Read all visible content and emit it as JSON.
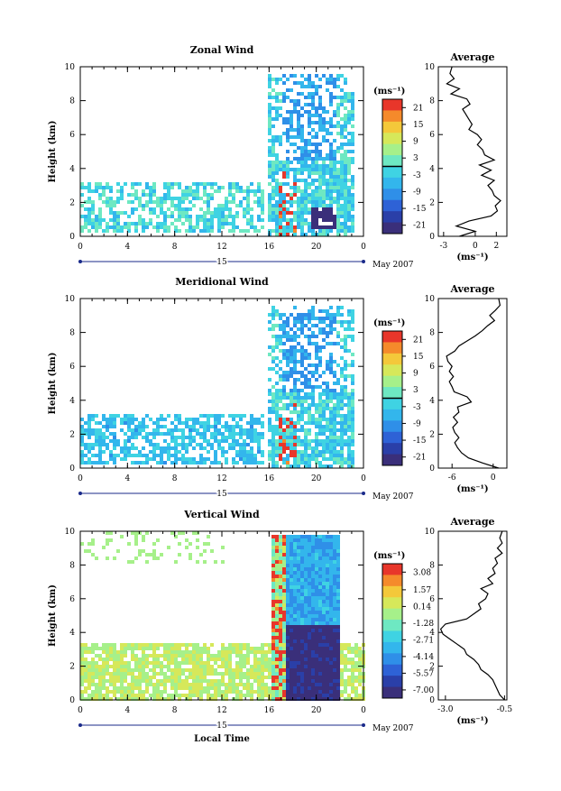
{
  "xlabel": "Local Time",
  "date_label": "May 2007",
  "day_label": "15",
  "unit_label": "(ms⁻¹)",
  "ylabel": "Height (km)",
  "avg_title": "Average",
  "colormap": [
    "#3a2f7a",
    "#2a3fa8",
    "#2e62d6",
    "#2f8fe8",
    "#33b6ec",
    "#3fd3e3",
    "#6ee8c2",
    "#a6f08a",
    "#d6e85a",
    "#f4c83a",
    "#f58a2b",
    "#e8362a"
  ],
  "chart_data": [
    {
      "type": "heatmap",
      "title": "Zonal Wind",
      "ylabel": "Height (km)",
      "xlabel": "",
      "x_ticks": [
        "0",
        "4",
        "8",
        "12",
        "16",
        "20",
        "0"
      ],
      "y_ticks": [
        "0",
        "2",
        "4",
        "6",
        "8",
        "10"
      ],
      "ylim": [
        0,
        10
      ],
      "colorbar_ticks": [
        "21",
        "15",
        "9",
        "3",
        "-3",
        "-9",
        "-15",
        "-21"
      ],
      "colorbar_range": [
        -24,
        24
      ],
      "avg": {
        "title": "Average",
        "xlabel": "(ms⁻¹)",
        "x_ticks": [
          "-3",
          "0",
          "2"
        ],
        "xlim": [
          -3.5,
          3
        ],
        "y_ticks": [
          "0",
          "2",
          "4",
          "6",
          "8",
          "10"
        ],
        "profile": [
          [
            0.0,
            -1.5
          ],
          [
            0.3,
            0.0
          ],
          [
            0.6,
            -1.8
          ],
          [
            0.9,
            -0.6
          ],
          [
            1.2,
            1.5
          ],
          [
            1.5,
            2.1
          ],
          [
            1.8,
            1.9
          ],
          [
            2.1,
            2.4
          ],
          [
            2.4,
            1.8
          ],
          [
            2.7,
            1.6
          ],
          [
            3.0,
            1.2
          ],
          [
            3.3,
            1.8
          ],
          [
            3.6,
            0.6
          ],
          [
            3.9,
            1.5
          ],
          [
            4.2,
            0.4
          ],
          [
            4.5,
            1.8
          ],
          [
            4.8,
            0.9
          ],
          [
            5.1,
            0.7
          ],
          [
            5.4,
            0.2
          ],
          [
            5.7,
            0.6
          ],
          [
            6.0,
            0.2
          ],
          [
            6.3,
            -0.6
          ],
          [
            6.6,
            -0.3
          ],
          [
            6.9,
            -0.6
          ],
          [
            7.2,
            -0.9
          ],
          [
            7.5,
            -1.2
          ],
          [
            7.8,
            -0.5
          ],
          [
            8.1,
            -0.8
          ],
          [
            8.4,
            -2.3
          ],
          [
            8.7,
            -1.5
          ],
          [
            9.0,
            -2.7
          ],
          [
            9.3,
            -2.0
          ],
          [
            9.6,
            -2.4
          ],
          [
            10.0,
            -2.2
          ]
        ]
      }
    },
    {
      "type": "heatmap",
      "title": "Meridional Wind",
      "ylabel": "Height (km)",
      "xlabel": "",
      "x_ticks": [
        "0",
        "4",
        "8",
        "12",
        "16",
        "20",
        "0"
      ],
      "y_ticks": [
        "0",
        "2",
        "4",
        "6",
        "8",
        "10"
      ],
      "ylim": [
        0,
        10
      ],
      "colorbar_ticks": [
        "21",
        "15",
        "9",
        "3",
        "-3",
        "-9",
        "-15",
        "-21"
      ],
      "colorbar_range": [
        -24,
        24
      ],
      "avg": {
        "title": "Average",
        "xlabel": "(ms⁻¹)",
        "x_ticks": [
          "-6",
          "0"
        ],
        "xlim": [
          -8,
          2
        ],
        "y_ticks": [
          "0",
          "2",
          "4",
          "6",
          "8",
          "10"
        ],
        "profile": [
          [
            0.0,
            0.8
          ],
          [
            0.3,
            -1.5
          ],
          [
            0.6,
            -3.6
          ],
          [
            0.9,
            -4.6
          ],
          [
            1.2,
            -5.2
          ],
          [
            1.5,
            -5.6
          ],
          [
            1.8,
            -5.0
          ],
          [
            2.1,
            -5.6
          ],
          [
            2.4,
            -5.9
          ],
          [
            2.7,
            -5.2
          ],
          [
            3.0,
            -5.8
          ],
          [
            3.3,
            -5.0
          ],
          [
            3.6,
            -5.2
          ],
          [
            3.9,
            -3.2
          ],
          [
            4.2,
            -3.8
          ],
          [
            4.5,
            -5.7
          ],
          [
            4.8,
            -6.0
          ],
          [
            5.1,
            -6.4
          ],
          [
            5.4,
            -5.8
          ],
          [
            5.7,
            -6.4
          ],
          [
            6.0,
            -6.0
          ],
          [
            6.3,
            -6.6
          ],
          [
            6.6,
            -6.8
          ],
          [
            6.9,
            -5.6
          ],
          [
            7.2,
            -5.0
          ],
          [
            7.5,
            -3.8
          ],
          [
            7.8,
            -2.6
          ],
          [
            8.1,
            -1.6
          ],
          [
            8.4,
            -0.8
          ],
          [
            8.7,
            0.2
          ],
          [
            9.0,
            -0.5
          ],
          [
            9.3,
            0.3
          ],
          [
            9.6,
            1.0
          ],
          [
            10.0,
            0.8
          ]
        ]
      }
    },
    {
      "type": "heatmap",
      "title": "Vertical Wind",
      "ylabel": "Height (km)",
      "xlabel": "Local Time",
      "x_ticks": [
        "0",
        "4",
        "8",
        "12",
        "16",
        "20",
        "0"
      ],
      "y_ticks": [
        "0",
        "2",
        "4",
        "6",
        "8",
        "10"
      ],
      "ylim": [
        0,
        10
      ],
      "colorbar_ticks": [
        "3.08",
        "1.57",
        "0.14",
        "-1.28",
        "-2.71",
        "-4.14",
        "-5.57",
        "-7.00"
      ],
      "colorbar_range": [
        -7.7,
        3.8
      ],
      "avg": {
        "title": "Average",
        "xlabel": "(ms⁻¹)",
        "x_ticks": [
          "-3.0",
          "-0.5"
        ],
        "xlim": [
          -3.3,
          -0.4
        ],
        "y_ticks": [
          "0",
          "2",
          "4",
          "6",
          "8",
          "10"
        ],
        "profile": [
          [
            0.0,
            -0.5
          ],
          [
            0.3,
            -0.7
          ],
          [
            0.6,
            -0.8
          ],
          [
            0.9,
            -0.9
          ],
          [
            1.2,
            -1.0
          ],
          [
            1.5,
            -1.2
          ],
          [
            1.8,
            -1.5
          ],
          [
            2.1,
            -1.6
          ],
          [
            2.4,
            -1.8
          ],
          [
            2.7,
            -2.1
          ],
          [
            3.0,
            -2.2
          ],
          [
            3.3,
            -2.5
          ],
          [
            3.6,
            -2.8
          ],
          [
            3.9,
            -3.1
          ],
          [
            4.2,
            -3.2
          ],
          [
            4.5,
            -3.0
          ],
          [
            4.8,
            -2.1
          ],
          [
            5.1,
            -1.8
          ],
          [
            5.4,
            -1.5
          ],
          [
            5.7,
            -1.6
          ],
          [
            6.0,
            -1.3
          ],
          [
            6.3,
            -1.2
          ],
          [
            6.6,
            -1.5
          ],
          [
            6.9,
            -1.0
          ],
          [
            7.2,
            -1.2
          ],
          [
            7.5,
            -0.9
          ],
          [
            7.8,
            -1.0
          ],
          [
            8.1,
            -0.8
          ],
          [
            8.4,
            -0.9
          ],
          [
            8.7,
            -0.6
          ],
          [
            9.0,
            -0.8
          ],
          [
            9.3,
            -0.6
          ],
          [
            9.6,
            -0.7
          ],
          [
            10.0,
            -0.6
          ]
        ]
      }
    }
  ]
}
